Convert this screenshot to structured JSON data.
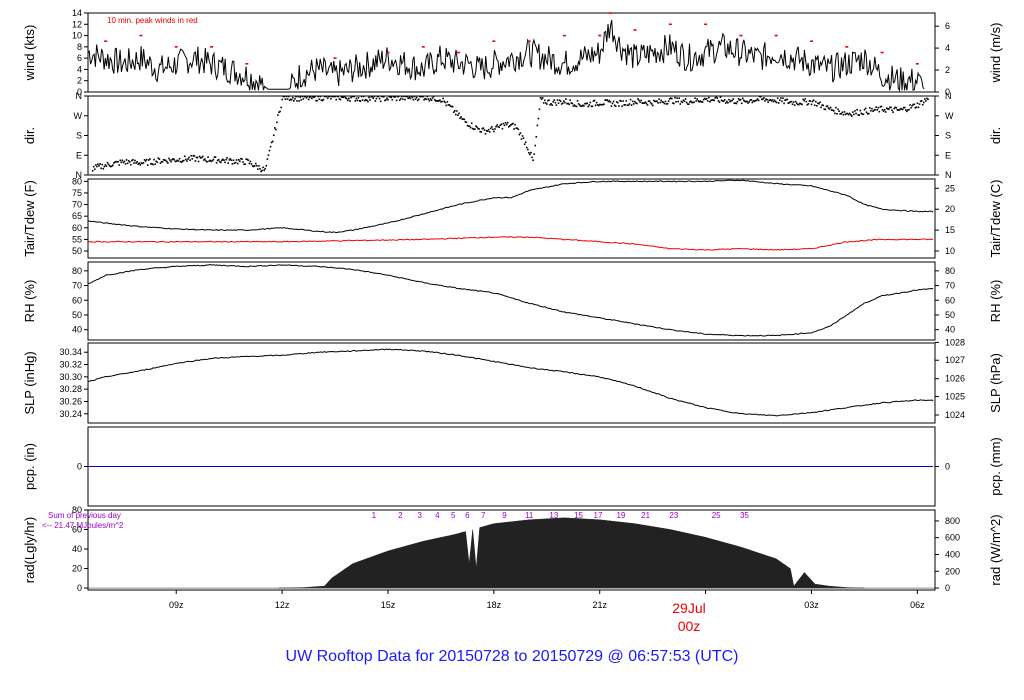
{
  "figure": {
    "title": "UW Rooftop Data for 20150728  to  20150729 @ 06:57:53  (UTC)",
    "wind_note": "10 min. peak winds in red",
    "rad_note_line1": "Sum of previous day",
    "rad_note_line2": "<-- 21.47 MJoules/m^2",
    "date_label": "29Jul",
    "date_sub": "00z",
    "date_color": "#ee0000",
    "note_color": "#9900cc"
  },
  "chart_data": {
    "type": "line",
    "x_axis": {
      "unit": "hours UTC",
      "range": [
        6.5,
        30.5
      ],
      "ticks": [
        9,
        12,
        15,
        18,
        21,
        24,
        27,
        30
      ],
      "tick_labels": [
        "09z",
        "12z",
        "15z",
        "18z",
        "21z",
        "",
        "03z",
        "06z"
      ]
    },
    "panels": [
      {
        "id": "wind",
        "ylabel_left": "wind (kts)",
        "ylabel_right": "wind (m/s)",
        "ylim": [
          0,
          14
        ],
        "ticks_left": [
          0,
          2,
          4,
          6,
          8,
          10,
          12,
          14
        ],
        "ticks_right": [
          0,
          2,
          4,
          6
        ],
        "ticks_right_values": [
          0,
          3.89,
          7.78,
          11.66
        ],
        "series": [
          {
            "color": "#000000",
            "x": [
              6.5,
              7,
              7.5,
              8,
              8.5,
              9,
              9.5,
              10,
              10.5,
              11,
              11.3,
              11.6,
              11.8,
              12,
              12.2,
              12.5,
              13,
              13.5,
              14,
              14.5,
              15,
              15.5,
              16,
              16.5,
              17,
              17.3,
              17.6,
              18,
              18.5,
              19,
              19.5,
              20,
              20.5,
              21,
              21.3,
              21.6,
              22,
              22.5,
              23,
              23.5,
              24,
              24.5,
              25,
              25.5,
              26,
              26.5,
              27,
              27.5,
              28,
              28.5,
              29,
              29.5,
              30,
              30.2
            ],
            "y": [
              7,
              6,
              5,
              6,
              4,
              5,
              6,
              5,
              4,
              3,
              2,
              0.5,
              0.5,
              0.5,
              0.5,
              3,
              4,
              3,
              4,
              5,
              6,
              5,
              4,
              6,
              5,
              5,
              4,
              5,
              6,
              7,
              6,
              5,
              6,
              7,
              12,
              8,
              6,
              7,
              8,
              6,
              7,
              8,
              7,
              6,
              7,
              6,
              5,
              4,
              5,
              6,
              3,
              2,
              2,
              0.5
            ]
          },
          {
            "color": "#ee0000",
            "x": [
              7,
              8,
              9,
              10,
              11,
              13.5,
              15,
              16,
              17,
              18,
              19,
              20,
              21,
              21.3,
              22,
              23,
              24,
              25,
              26,
              27,
              28,
              29,
              30
            ],
            "y": [
              9,
              10,
              8,
              8,
              5,
              6,
              7,
              8,
              7,
              9,
              9,
              10,
              10,
              14,
              11,
              12,
              12,
              10,
              10,
              9,
              8,
              7,
              5
            ]
          }
        ]
      },
      {
        "id": "dir",
        "ylabel_left": "dir.",
        "ylabel_right": "dir.",
        "ylim": [
          0,
          360
        ],
        "tick_labels": [
          "N",
          "E",
          "S",
          "W",
          "N"
        ],
        "tick_values": [
          0,
          90,
          180,
          270,
          360
        ],
        "series": [
          {
            "color": "#000000",
            "style": "dots",
            "x": [
              6.6,
              7,
              7.5,
              8,
              8.5,
              9,
              9.5,
              10,
              10.5,
              11,
              11.5,
              12,
              12.5,
              13,
              13.5,
              14,
              14.5,
              15,
              15.5,
              16,
              16.5,
              16.8,
              17.1,
              17.4,
              17.7,
              18,
              18.3,
              18.6,
              18.9,
              19.1,
              19.3,
              19.6,
              20,
              20.5,
              21,
              21.5,
              22,
              22.5,
              23,
              23.5,
              24,
              24.5,
              25,
              25.5,
              26,
              26.5,
              27,
              27.5,
              28,
              28.5,
              29,
              29.5,
              30,
              30.3
            ],
            "y": [
              30,
              45,
              60,
              55,
              65,
              70,
              75,
              70,
              65,
              60,
              20,
              355,
              350,
              352,
              355,
              350,
              348,
              350,
              352,
              355,
              345,
              300,
              250,
              220,
              200,
              210,
              230,
              220,
              140,
              60,
              340,
              330,
              335,
              320,
              330,
              325,
              335,
              330,
              340,
              335,
              345,
              340,
              335,
              345,
              340,
              330,
              335,
              300,
              280,
              290,
              300,
              295,
              320,
              350
            ]
          }
        ]
      },
      {
        "id": "temp",
        "ylabel_left": "Tair/Tdew (F)",
        "ylabel_right": "Tair/Tdew (C)",
        "ylim": [
          47,
          81
        ],
        "ticks_left": [
          50,
          55,
          60,
          65,
          70,
          75,
          80
        ],
        "ticks_right": [
          10,
          15,
          20,
          25
        ],
        "ticks_right_values": [
          50,
          59,
          68,
          77
        ],
        "series": [
          {
            "color": "#000000",
            "x": [
              6.5,
              7,
              8,
              9,
              10,
              11,
              12,
              13,
              13.5,
              14,
              15,
              16,
              17,
              18,
              18.5,
              19,
              20,
              21,
              22,
              23,
              24,
              25,
              26,
              27,
              27.5,
              28,
              28.5,
              29,
              30,
              30.5
            ],
            "y": [
              63,
              62,
              60.5,
              59.5,
              59,
              59,
              60,
              58.5,
              58,
              59,
              62,
              66,
              70,
              73,
              73,
              76,
              79,
              80,
              80,
              80,
              80,
              80.5,
              79,
              78,
              76,
              74,
              70,
              68,
              67,
              67
            ]
          },
          {
            "color": "#ee0000",
            "x": [
              6.5,
              8,
              10,
              12,
              14,
              16,
              18,
              19,
              20,
              21,
              22,
              23,
              24,
              25,
              26,
              27,
              28,
              29,
              30,
              30.5
            ],
            "y": [
              54,
              54,
              54,
              54,
              54.5,
              55,
              56,
              56,
              55,
              54,
              53,
              51,
              50.5,
              51,
              50.5,
              51,
              54,
              55,
              55,
              55
            ]
          }
        ]
      },
      {
        "id": "rh",
        "ylabel_left": "RH (%)",
        "ylabel_right": "RH (%)",
        "ylim": [
          33,
          86
        ],
        "ticks_left": [
          40,
          50,
          60,
          70,
          80
        ],
        "ticks_right": [
          40,
          50,
          60,
          70,
          80
        ],
        "ticks_right_values": [
          40,
          50,
          60,
          70,
          80
        ],
        "series": [
          {
            "color": "#000000",
            "x": [
              6.5,
              7,
              8,
              9,
              10,
              11,
              12,
              13,
              14,
              15,
              16,
              17,
              18,
              19,
              20,
              21,
              22,
              23,
              24,
              25,
              26,
              27,
              27.5,
              28,
              28.5,
              29,
              30,
              30.5
            ],
            "y": [
              71,
              77,
              81,
              83,
              84,
              83,
              84,
              83,
              81,
              77,
              72,
              68,
              65,
              58,
              52,
              48,
              44,
              40,
              37,
              36,
              36,
              38,
              42,
              50,
              58,
              63,
              67,
              68
            ]
          }
        ]
      },
      {
        "id": "slp",
        "ylabel_left": "SLP (inHg)",
        "ylabel_right": "SLP (hPa)",
        "ylim": [
          30.225,
          30.355
        ],
        "ticks_left": [
          30.24,
          30.26,
          30.28,
          30.3,
          30.32,
          30.34
        ],
        "tick_labels_left": [
          "30.24",
          "30.26",
          "30.28",
          "30.30",
          "30.32",
          "30.34"
        ],
        "ticks_right": [
          1024,
          1025,
          1026,
          1027,
          1028
        ],
        "ticks_right_values": [
          30.238,
          30.268,
          30.297,
          30.327,
          30.356
        ],
        "series": [
          {
            "color": "#000000",
            "x": [
              6.5,
              7,
              8,
              9,
              10,
              11,
              12,
              13,
              14,
              15,
              16,
              17,
              18,
              19,
              20,
              21,
              22,
              23,
              24,
              25,
              26,
              27,
              28,
              29,
              30,
              30.5
            ],
            "y": [
              30.292,
              30.3,
              30.31,
              30.322,
              30.33,
              30.333,
              30.335,
              30.34,
              30.342,
              30.345,
              30.342,
              30.335,
              30.325,
              30.315,
              30.308,
              30.3,
              30.285,
              30.265,
              30.25,
              30.24,
              30.237,
              30.242,
              30.25,
              30.258,
              30.262,
              30.262
            ]
          }
        ]
      },
      {
        "id": "pcp",
        "ylabel_left": "pcp. (in)",
        "ylabel_right": "pcp. (mm)",
        "ylim": [
          -0.05,
          0.05
        ],
        "ticks_left": [
          0
        ],
        "ticks_right": [
          0
        ],
        "ticks_right_values": [
          0
        ],
        "series": [
          {
            "color": "#0000dd",
            "x": [
              6.5,
              30.5
            ],
            "y": [
              0,
              0
            ]
          }
        ]
      },
      {
        "id": "rad",
        "ylabel_left": "rad(Lgly/hr)",
        "ylabel_right": "rad (W/m^2)",
        "ylim": [
          -2,
          80
        ],
        "ticks_left": [
          0,
          20,
          40,
          60,
          80
        ],
        "ticks_right": [
          0,
          200,
          400,
          600,
          800
        ],
        "ticks_right_values": [
          0,
          17.2,
          34.4,
          51.6,
          68.8
        ],
        "series": [
          {
            "color": "#222222",
            "style": "area",
            "x": [
              11.9,
              12.6,
              13.2,
              13.4,
              14,
              15,
              16,
              16.9,
              17.2,
              17.3,
              17.4,
              17.5,
              17.6,
              18,
              19,
              20,
              21,
              22,
              23,
              24,
              25,
              26,
              26.4,
              26.5,
              26.8,
              27.1,
              27.5,
              28,
              28.5
            ],
            "y": [
              0,
              0.5,
              2,
              10,
              25,
              38,
              48,
              55,
              58,
              25,
              60,
              20,
              62,
              66,
              70,
              72,
              70,
              66,
              60,
              52,
              42,
              30,
              20,
              2,
              16,
              4,
              2,
              0.5,
              0
            ]
          }
        ],
        "hour_labels": [
          "1",
          "2",
          "3",
          "4",
          "5",
          "6",
          "7",
          "9",
          "11",
          "13",
          "15",
          "17",
          "19",
          "21",
          "23",
          "25",
          "35"
        ],
        "hour_label_x": [
          14.6,
          15.35,
          15.9,
          16.4,
          16.85,
          17.25,
          17.7,
          18.3,
          19.0,
          19.7,
          20.4,
          20.95,
          21.6,
          22.3,
          23.1,
          24.3,
          25.1
        ]
      }
    ]
  }
}
